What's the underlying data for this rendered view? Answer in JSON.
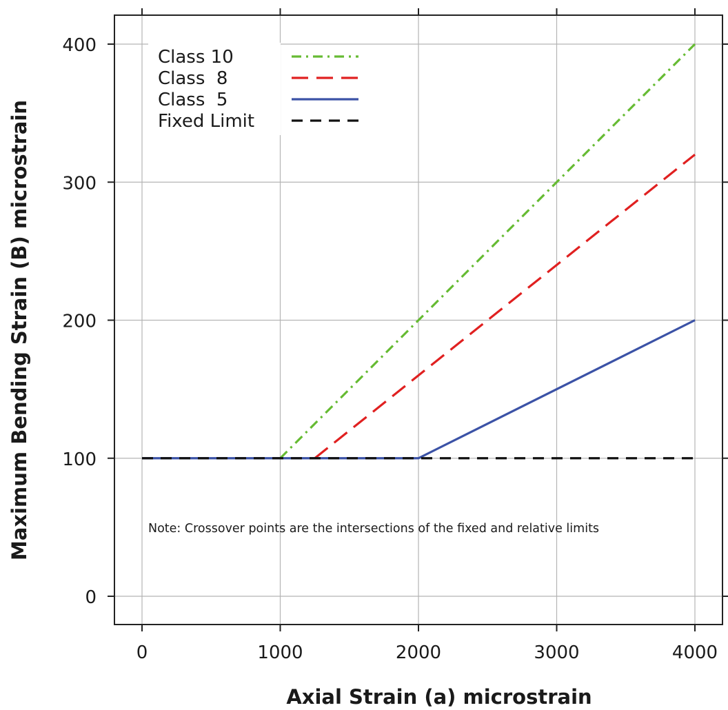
{
  "chart_data": {
    "type": "line",
    "title": "",
    "xlabel": "Axial Strain (a) microstrain",
    "ylabel": "Maximum Bending Strain (B) microstrain",
    "xlim": [
      -100,
      4100
    ],
    "ylim": [
      -20,
      420
    ],
    "xticks": [
      0,
      1000,
      2000,
      3000,
      4000
    ],
    "yticks": [
      0,
      100,
      200,
      300,
      400
    ],
    "grid": true,
    "legend_position": "top-left",
    "series": [
      {
        "name": "Class 10",
        "color": "#66bb33",
        "dash": "dash-dot",
        "x": [
          1000,
          4000
        ],
        "y": [
          100,
          400
        ]
      },
      {
        "name": "Class  8",
        "color": "#e02020",
        "dash": "long-dash",
        "x": [
          1250,
          4000
        ],
        "y": [
          100,
          320
        ]
      },
      {
        "name": "Class  5",
        "color": "#3b52a6",
        "dash": "solid",
        "x": [
          0,
          2000,
          4000
        ],
        "y": [
          100,
          100,
          200
        ]
      },
      {
        "name": "Fixed Limit",
        "color": "#111111",
        "dash": "dash",
        "x": [
          0,
          4000
        ],
        "y": [
          100,
          100
        ]
      }
    ],
    "annotation": "Note: Crossover points are the intersections of the fixed and relative limits"
  }
}
